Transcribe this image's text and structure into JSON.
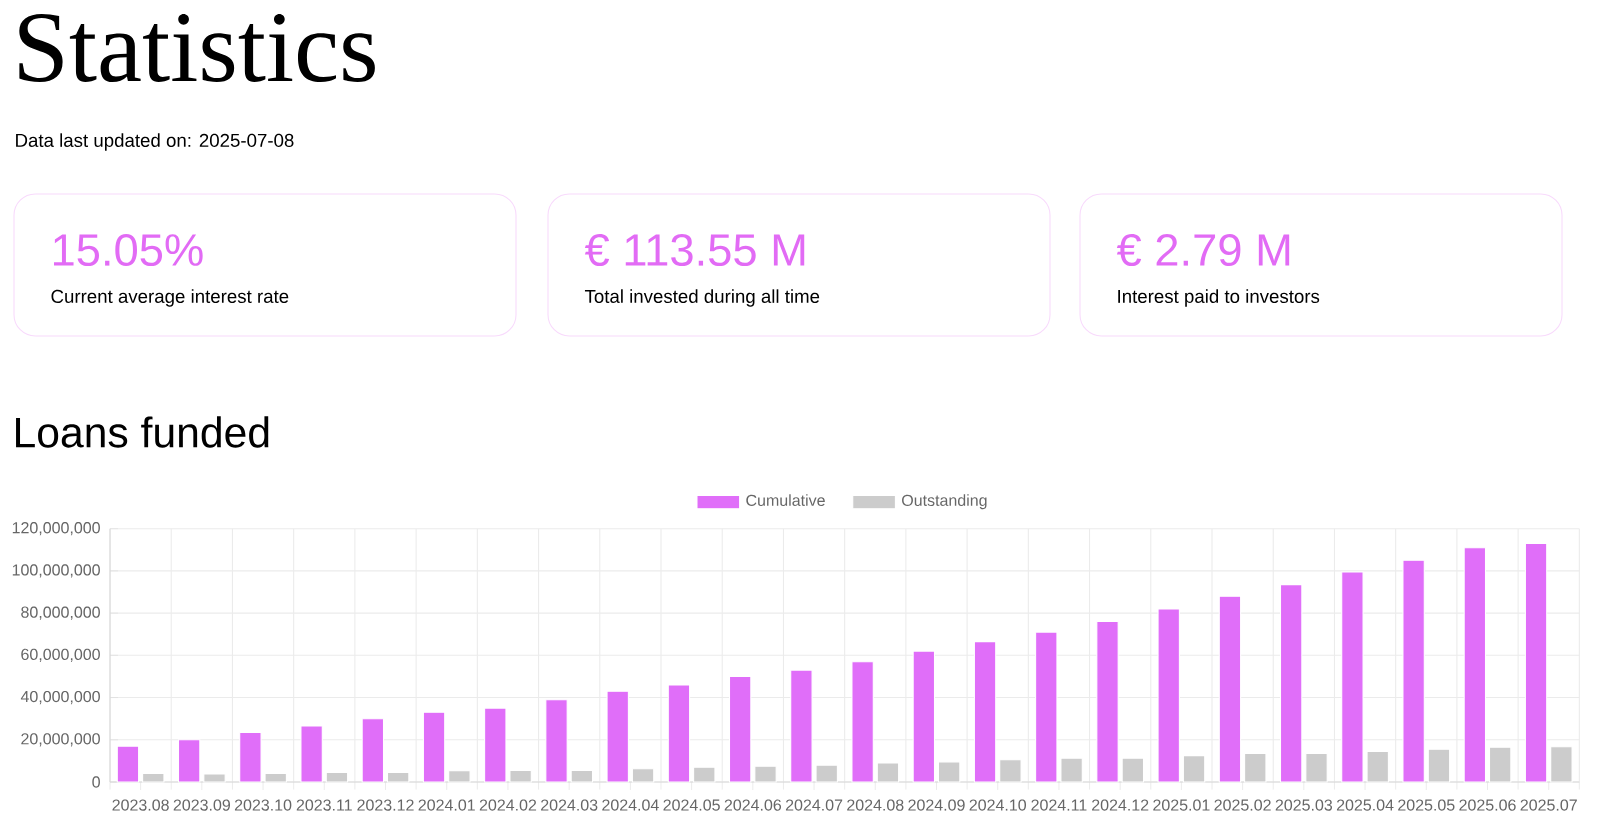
{
  "chart_data": [
    {
      "type": "other",
      "title": "Statistics",
      "subtitle": "Data last updated on: 2025-07-08",
      "annotations": [
        "15.05%",
        "Current average interest rate",
        "€ 113.55 M",
        "Total invested during all time",
        "€ 2.79 M",
        "Interest paid to investors"
      ]
    },
    {
      "type": "bar",
      "title": "Loans funded",
      "categories": [
        "2023.08",
        "2023.09",
        "2023.10",
        "2023.11",
        "2023.12",
        "2024.01",
        "2024.02",
        "2024.03",
        "2024.04",
        "2024.05",
        "2024.06",
        "2024.07",
        "2024.08",
        "2024.09",
        "2024.10",
        "2024.11",
        "2024.12",
        "2025.01",
        "2025.02",
        "2025.03",
        "2025.04",
        "2025.05",
        "2025.06",
        "2025.07"
      ],
      "series": [
        {
          "name": "Cumulative",
          "color": "#e06ef9",
          "values": [
            17000000,
            20000000,
            23500000,
            26500000,
            30000000,
            33000000,
            35000000,
            39000000,
            43000000,
            46000000,
            50000000,
            53000000,
            57000000,
            62000000,
            66500000,
            71000000,
            76000000,
            82000000,
            88000000,
            93500000,
            99500000,
            105000000,
            111000000,
            113000000
          ]
        },
        {
          "name": "Outstanding",
          "color": "#cccccc",
          "values": [
            4000000,
            3800000,
            4000000,
            4500000,
            4500000,
            5300000,
            5500000,
            5500000,
            6300000,
            7000000,
            7500000,
            8000000,
            9000000,
            9500000,
            10500000,
            11300000,
            11300000,
            12500000,
            13500000,
            13500000,
            14500000,
            15500000,
            16500000,
            16700000
          ]
        }
      ],
      "ylim": [
        0,
        120000000
      ],
      "yticks": [
        0,
        {
          "value": 20000000,
          "label": "20,000,000"
        },
        {
          "value": 40000000,
          "label": "40,000,000"
        },
        {
          "value": 60000000,
          "label": "60,000,000"
        },
        {
          "value": 80000000,
          "label": "80,000,000"
        },
        {
          "value": 100000000,
          "label": "100,000,000"
        },
        {
          "value": 120000000,
          "label": "120,000,000"
        }
      ],
      "grid": true,
      "legend": "top"
    }
  ]
}
